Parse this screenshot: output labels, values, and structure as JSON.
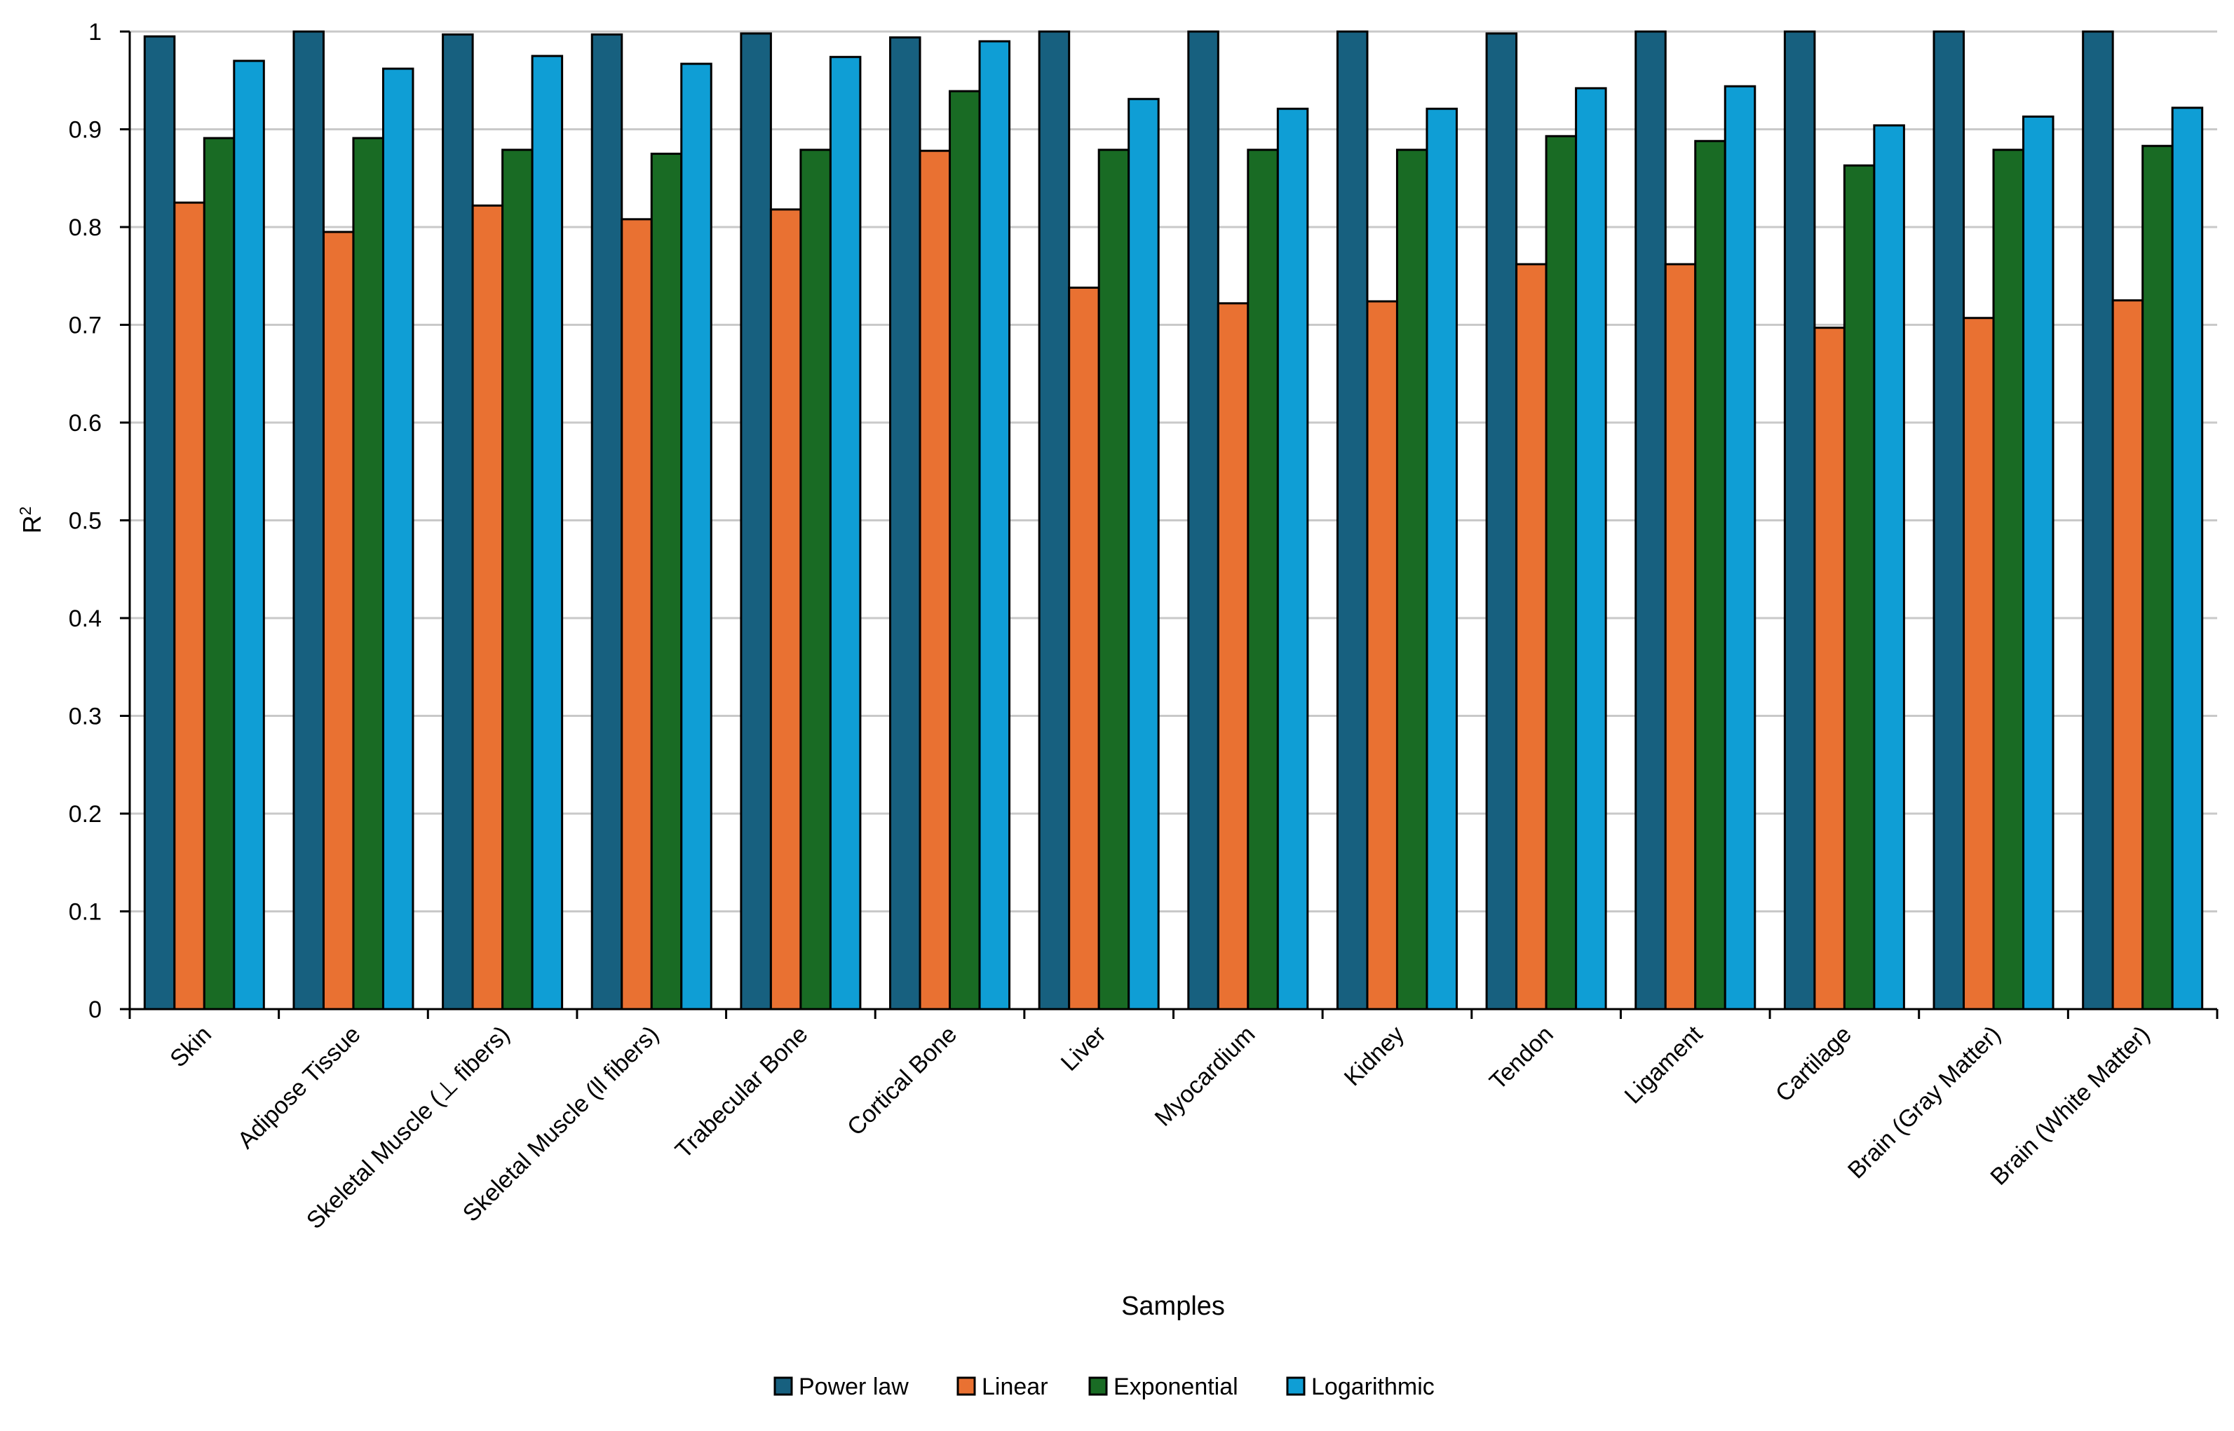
{
  "chart_data": {
    "type": "bar",
    "title": "",
    "xlabel": "Samples",
    "ylabel": "R",
    "ylabel_superscript": "2",
    "ylim": [
      0,
      1
    ],
    "yticks": [
      "0",
      "0.1",
      "0.2",
      "0.3",
      "0.4",
      "0.5",
      "0.6",
      "0.7",
      "0.8",
      "0.9",
      "1"
    ],
    "grid": true,
    "legend_position": "bottom",
    "categories": [
      "Skin",
      "Adipose Tissue",
      "Skeletal Muscle (⊥ fibers)",
      "Skeletal Muscle (ll fibers)",
      "Trabecular Bone",
      "Cortical Bone",
      "Liver",
      "Myocardium",
      "Kidney",
      "Tendon",
      "Ligament",
      "Cartilage",
      "Brain (Gray Matter)",
      "Brain (White Matter)"
    ],
    "series": [
      {
        "name": "Power law",
        "color": "#17607f",
        "values": [
          0.995,
          1.0,
          0.997,
          0.997,
          0.998,
          0.994,
          1.0,
          1.0,
          1.0,
          0.998,
          1.0,
          1.0,
          1.0,
          1.0
        ]
      },
      {
        "name": "Linear",
        "color": "#e97132",
        "values": [
          0.825,
          0.795,
          0.822,
          0.808,
          0.818,
          0.878,
          0.738,
          0.722,
          0.724,
          0.762,
          0.762,
          0.697,
          0.707,
          0.725
        ]
      },
      {
        "name": "Exponential",
        "color": "#196b24",
        "values": [
          0.891,
          0.891,
          0.879,
          0.875,
          0.879,
          0.939,
          0.879,
          0.879,
          0.879,
          0.893,
          0.888,
          0.863,
          0.879,
          0.883
        ]
      },
      {
        "name": "Logarithmic",
        "color": "#0f9ed5",
        "values": [
          0.97,
          0.962,
          0.975,
          0.967,
          0.974,
          0.99,
          0.931,
          0.921,
          0.921,
          0.942,
          0.944,
          0.904,
          0.913,
          0.922
        ]
      }
    ]
  }
}
